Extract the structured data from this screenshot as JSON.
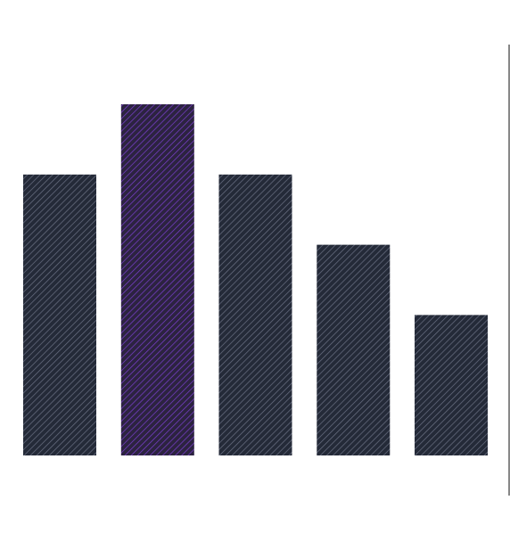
{
  "chart_data": {
    "type": "bar",
    "title": "",
    "xlabel": "",
    "ylabel": "",
    "categories": [
      "",
      "",
      "",
      "",
      ""
    ],
    "values": [
      4,
      5,
      4,
      3,
      2
    ],
    "ylim": [
      0,
      5
    ],
    "highlight_index": 1,
    "grid": false,
    "legend": "none",
    "colors": {
      "bar": "#242a38",
      "bar_stripe": "#6b7184",
      "highlight": "#2c2340",
      "highlight_stripe": "#7b3fd0",
      "axis": "#111111",
      "background": "#ffffff"
    }
  }
}
